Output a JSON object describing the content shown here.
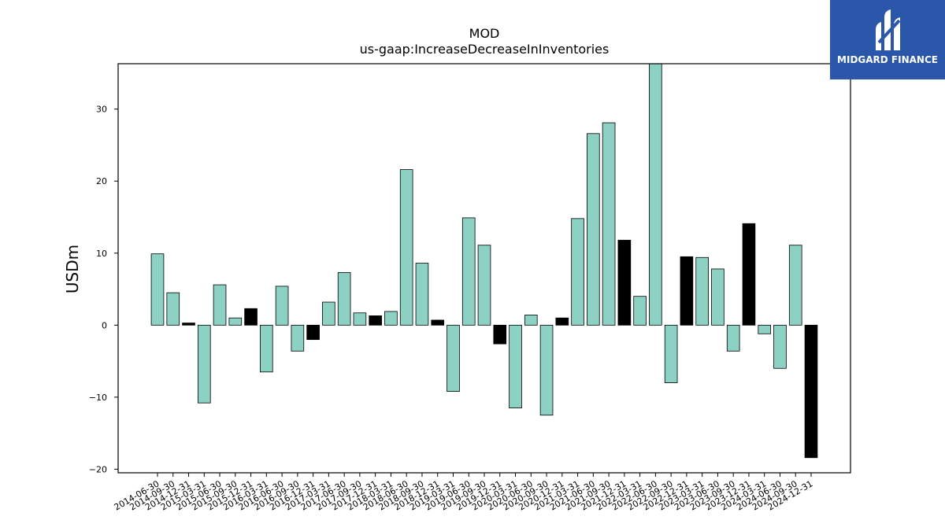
{
  "brand": {
    "name": "MIDGARD FINANCE",
    "color": "#2b57ab",
    "icon": "midgard-logo-icon"
  },
  "chart_data": {
    "type": "bar",
    "title": "MOD",
    "subtitle": "us-gaap:IncreaseDecreaseInInventories",
    "xlabel": "",
    "ylabel": "USDm",
    "ylim": [
      -20.5,
      36.3
    ],
    "yticks": [
      -20,
      -10,
      0,
      10,
      20,
      30
    ],
    "ytick_labels": [
      "−20",
      "−10",
      "0",
      "10",
      "20",
      "30"
    ],
    "grid": false,
    "colors": {
      "default": "#8dd1c5",
      "highlight": "#000000"
    },
    "categories": [
      "2014-06-30",
      "2014-09-30",
      "2014-12-31",
      "2015-03-31",
      "2015-06-30",
      "2015-09-30",
      "2015-12-31",
      "2016-03-31",
      "2016-06-30",
      "2016-09-30",
      "2016-12-31",
      "2017-03-31",
      "2017-06-30",
      "2017-09-30",
      "2017-12-31",
      "2018-03-31",
      "2018-06-30",
      "2018-09-30",
      "2018-12-31",
      "2019-03-31",
      "2019-06-30",
      "2019-09-30",
      "2019-12-31",
      "2020-03-31",
      "2020-06-30",
      "2020-09-30",
      "2020-12-31",
      "2021-03-31",
      "2021-06-30",
      "2021-09-30",
      "2021-12-31",
      "2022-03-31",
      "2022-06-30",
      "2022-09-30",
      "2022-12-31",
      "2023-03-31",
      "2023-06-30",
      "2023-09-30",
      "2023-12-31",
      "2024-03-31",
      "2024-06-30",
      "2024-09-30",
      "2024-12-31"
    ],
    "values": [
      9.9,
      4.5,
      0.3,
      -10.8,
      5.6,
      1.0,
      2.3,
      -6.5,
      5.4,
      -3.6,
      -2.0,
      3.2,
      7.3,
      1.7,
      1.3,
      1.9,
      21.6,
      8.6,
      0.7,
      -9.2,
      14.9,
      11.1,
      -2.6,
      -11.5,
      1.4,
      -12.5,
      1.0,
      14.8,
      26.6,
      28.1,
      11.8,
      4.0,
      36.3,
      -8.0,
      9.5,
      9.4,
      7.8,
      -3.6,
      14.1,
      -1.2,
      -6.0,
      11.1,
      -18.4
    ],
    "highlight": [
      false,
      false,
      true,
      false,
      false,
      false,
      true,
      false,
      false,
      false,
      true,
      false,
      false,
      false,
      true,
      false,
      false,
      false,
      true,
      false,
      false,
      false,
      true,
      false,
      false,
      false,
      true,
      false,
      false,
      false,
      true,
      false,
      false,
      false,
      true,
      false,
      false,
      false,
      true,
      false,
      false,
      false,
      true
    ]
  }
}
